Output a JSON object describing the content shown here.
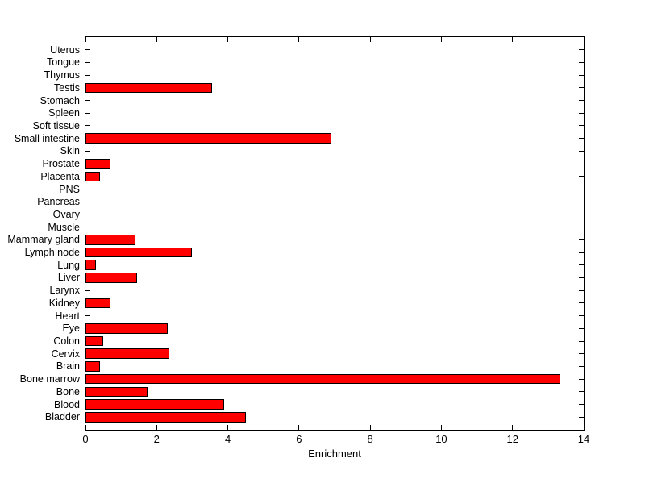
{
  "chart_data": {
    "type": "bar",
    "orientation": "horizontal",
    "title": "",
    "xlabel": "Enrichment",
    "ylabel": "",
    "xlim": [
      0,
      14
    ],
    "xticks": [
      0,
      2,
      4,
      6,
      8,
      10,
      12,
      14
    ],
    "grid": false,
    "legend": "none",
    "bar_color": "#ff0000",
    "bar_edge_color": "#000000",
    "axis_color": "#000000",
    "background_color": "#ffffff",
    "categories_top_to_bottom": [
      "Uterus",
      "Tongue",
      "Thymus",
      "Testis",
      "Stomach",
      "Spleen",
      "Soft tissue",
      "Small intestine",
      "Skin",
      "Prostate",
      "Placenta",
      "PNS",
      "Pancreas",
      "Ovary",
      "Muscle",
      "Mammary gland",
      "Lymph node",
      "Lung",
      "Liver",
      "Larynx",
      "Kidney",
      "Heart",
      "Eye",
      "Colon",
      "Cervix",
      "Brain",
      "Bone marrow",
      "Bone",
      "Blood",
      "Bladder"
    ],
    "values_top_to_bottom": [
      0,
      0,
      0,
      3.55,
      0,
      0,
      0,
      6.9,
      0,
      0.7,
      0.4,
      0,
      0,
      0,
      0,
      1.4,
      3.0,
      0.3,
      1.45,
      0,
      0.7,
      0,
      2.3,
      0.5,
      2.35,
      0.4,
      13.35,
      1.75,
      3.9,
      4.5
    ],
    "bar_width_fraction": 0.8
  }
}
